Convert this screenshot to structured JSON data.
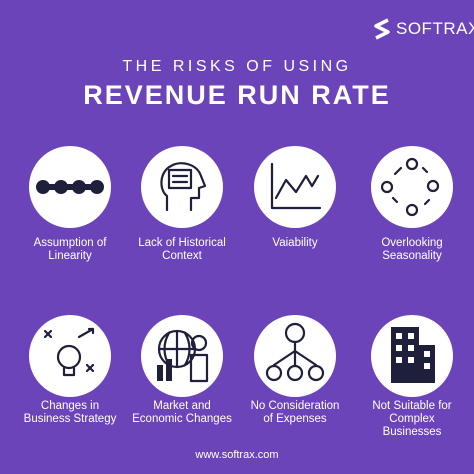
{
  "brand": "SOFTRAX",
  "header": {
    "kicker": "THE RISKS OF USING",
    "title": "REVENUE RUN RATE"
  },
  "items": [
    {
      "lines": [
        "Assumption of",
        "Linearity"
      ]
    },
    {
      "lines": [
        "Lack of Historical",
        "Context"
      ]
    },
    {
      "lines": [
        "Vaiability"
      ]
    },
    {
      "lines": [
        "Overlooking",
        "Seasonality"
      ]
    },
    {
      "lines": [
        "Changes in",
        "Business Strategy"
      ]
    },
    {
      "lines": [
        "Market and",
        "Economic Changes"
      ]
    },
    {
      "lines": [
        "No Consideration",
        "of Expenses"
      ]
    },
    {
      "lines": [
        "Not Suitable for",
        "Complex",
        "Businesses"
      ]
    }
  ],
  "footer": "www.softrax.com"
}
